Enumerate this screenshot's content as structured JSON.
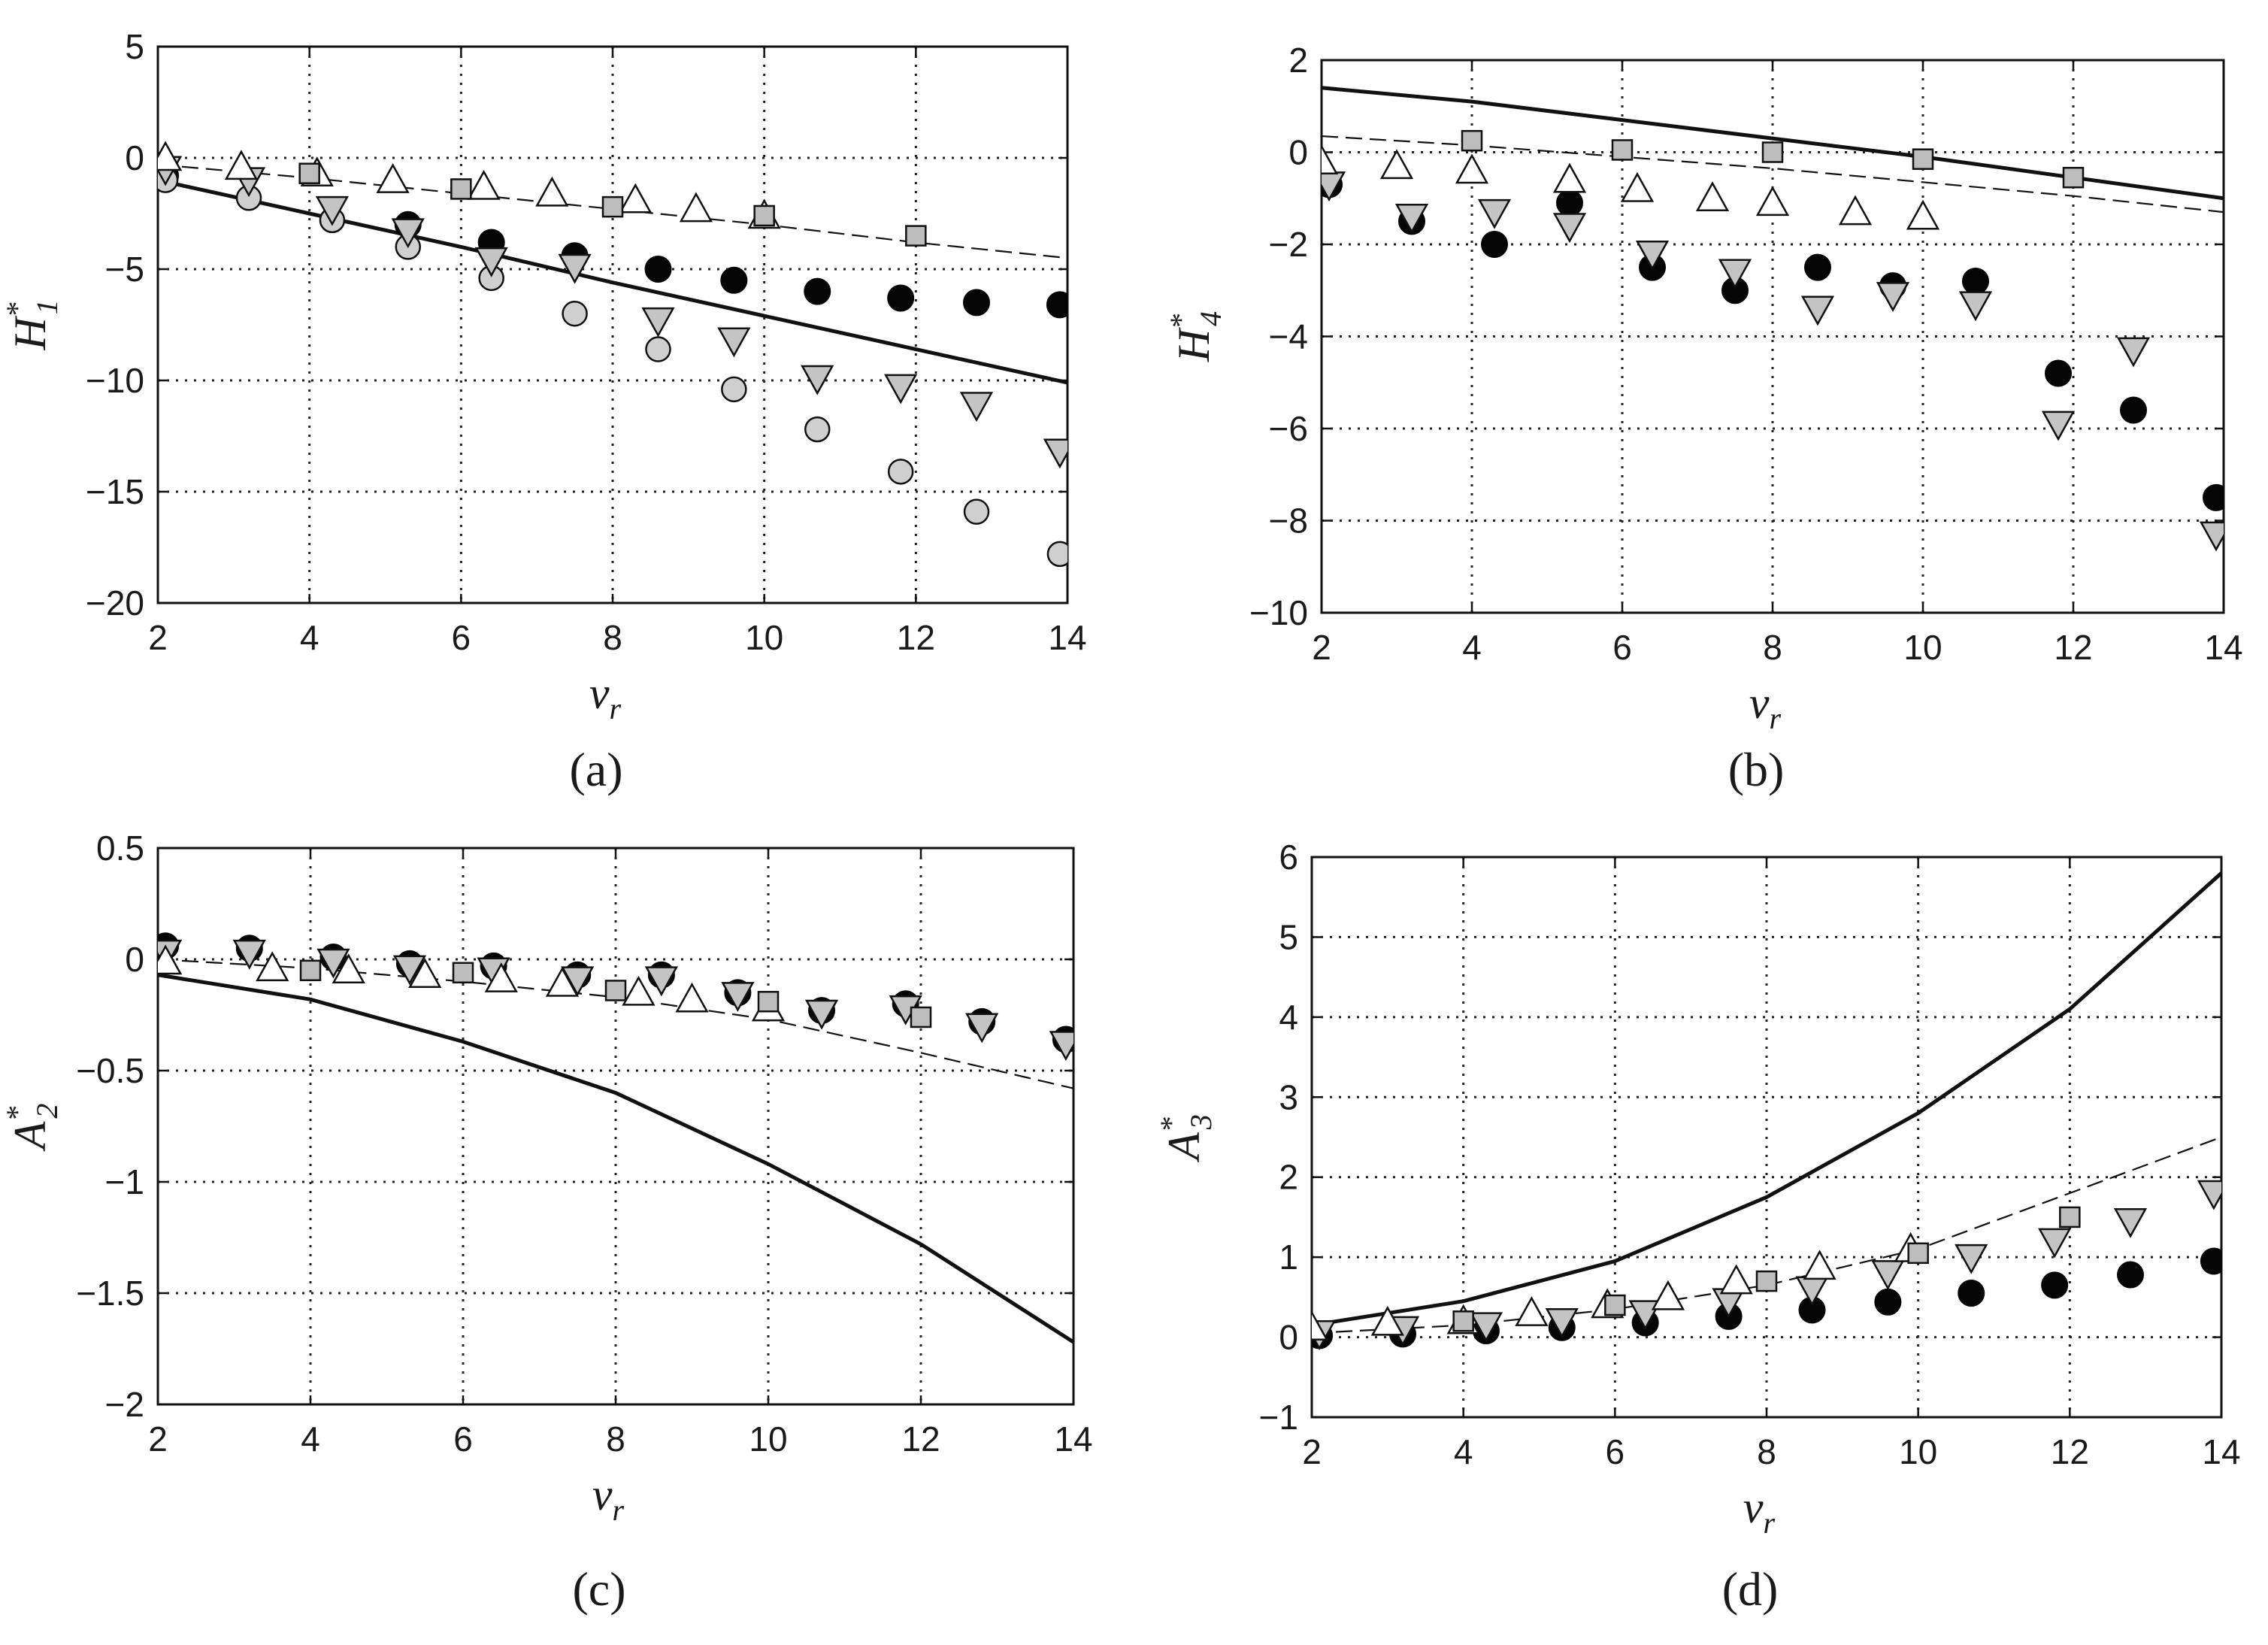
{
  "chart_data": [
    {
      "panel": "a",
      "panel_label": "(a)",
      "type": "scatter",
      "ylabel": "H",
      "ylabel_sup": "*",
      "ylabel_sub": "1",
      "xlabel": "v",
      "xlabel_sub": "r",
      "xlim": [
        2,
        14
      ],
      "ylim": [
        -20,
        5
      ],
      "xticks": [
        2,
        4,
        6,
        8,
        10,
        12,
        14
      ],
      "yticks": [
        5,
        0,
        -5,
        -10,
        -15,
        -20
      ],
      "xticklabels": [
        "2",
        "4",
        "6",
        "8",
        "10",
        "12",
        "14"
      ],
      "yticklabels": [
        "5",
        "0",
        "−5",
        "−10",
        "−15",
        "−20"
      ],
      "grid": true,
      "series": [
        {
          "name": "solid-line",
          "style": "line-solid",
          "x": [
            2,
            4,
            6,
            8,
            10,
            12,
            14
          ],
          "y": [
            -1.0,
            -2.5,
            -4.0,
            -5.6,
            -7.1,
            -8.6,
            -10.1
          ]
        },
        {
          "name": "dashed-line",
          "style": "line-dashed",
          "x": [
            2,
            4,
            6,
            8,
            10,
            12,
            14
          ],
          "y": [
            -0.3,
            -0.9,
            -1.6,
            -2.3,
            -3.0,
            -3.8,
            -4.5
          ]
        },
        {
          "name": "black-circles",
          "style": "circle-black",
          "x": [
            2.1,
            5.3,
            6.4,
            7.5,
            8.6,
            9.6,
            10.7,
            11.8,
            12.8,
            13.9
          ],
          "y": [
            -0.8,
            -3.0,
            -3.8,
            -4.4,
            -5.0,
            -5.5,
            -6.0,
            -6.3,
            -6.5,
            -6.6
          ]
        },
        {
          "name": "gray-circles",
          "style": "circle-gray",
          "x": [
            2.1,
            3.2,
            4.3,
            5.3,
            6.4,
            7.5,
            8.6,
            9.6,
            10.7,
            11.8,
            12.8,
            13.9
          ],
          "y": [
            -1.0,
            -1.8,
            -2.8,
            -4.0,
            -5.4,
            -7.0,
            -8.6,
            -10.4,
            -12.2,
            -14.1,
            -15.9,
            -17.8
          ]
        },
        {
          "name": "gray-down-triangles",
          "style": "tri-down-gray",
          "x": [
            2.1,
            3.2,
            4.3,
            5.3,
            6.4,
            7.5,
            8.6,
            9.6,
            10.7,
            11.8,
            12.8,
            13.9
          ],
          "y": [
            -0.5,
            -1.0,
            -2.3,
            -3.3,
            -4.6,
            -4.9,
            -7.3,
            -8.2,
            -9.9,
            -10.3,
            -11.1,
            -13.2
          ]
        },
        {
          "name": "white-up-triangles",
          "style": "tri-up-white",
          "x": [
            2.1,
            3.1,
            4.1,
            5.1,
            6.3,
            7.2,
            8.3,
            9.1,
            10.0
          ],
          "y": [
            0.0,
            -0.4,
            -0.7,
            -1.0,
            -1.3,
            -1.6,
            -1.9,
            -2.3,
            -2.6
          ]
        },
        {
          "name": "gray-squares",
          "style": "square-gray",
          "x": [
            4.0,
            6.0,
            8.0,
            10.0,
            12.0
          ],
          "y": [
            -0.7,
            -1.4,
            -2.2,
            -2.6,
            -3.5
          ]
        }
      ]
    },
    {
      "panel": "b",
      "panel_label": "(b)",
      "type": "scatter",
      "ylabel": "H",
      "ylabel_sup": "*",
      "ylabel_sub": "4",
      "xlabel": "v",
      "xlabel_sub": "r",
      "xlim": [
        2,
        14
      ],
      "ylim": [
        -10,
        2
      ],
      "xticks": [
        2,
        4,
        6,
        8,
        10,
        12,
        14
      ],
      "yticks": [
        2,
        0,
        -2,
        -4,
        -6,
        -8,
        -10
      ],
      "xticklabels": [
        "2",
        "4",
        "6",
        "8",
        "10",
        "12",
        "14"
      ],
      "yticklabels": [
        "2",
        "0",
        "−2",
        "−4",
        "−6",
        "−8",
        "−10"
      ],
      "grid": true,
      "series": [
        {
          "name": "solid-line",
          "style": "line-solid",
          "x": [
            2,
            4,
            6,
            8,
            10,
            12,
            14
          ],
          "y": [
            1.4,
            1.1,
            0.7,
            0.3,
            -0.1,
            -0.55,
            -1.0
          ]
        },
        {
          "name": "dashed-line",
          "style": "line-dashed",
          "x": [
            2,
            4,
            6,
            8,
            10,
            12,
            14
          ],
          "y": [
            0.35,
            0.15,
            -0.1,
            -0.35,
            -0.65,
            -0.95,
            -1.3
          ]
        },
        {
          "name": "black-circles",
          "style": "circle-black",
          "x": [
            2.1,
            3.2,
            4.3,
            5.3,
            6.4,
            7.5,
            8.6,
            9.6,
            10.7,
            11.8,
            12.8,
            13.9
          ],
          "y": [
            -0.7,
            -1.5,
            -2.0,
            -1.1,
            -2.5,
            -3.0,
            -2.5,
            -2.9,
            -2.8,
            -4.8,
            -5.6,
            -7.5
          ]
        },
        {
          "name": "gray-down-triangles",
          "style": "tri-down-gray",
          "x": [
            2.1,
            3.2,
            4.3,
            5.3,
            6.4,
            7.5,
            8.6,
            9.6,
            10.7,
            11.8,
            12.8,
            13.9
          ],
          "y": [
            -0.7,
            -1.4,
            -1.3,
            -1.6,
            -2.2,
            -2.6,
            -3.4,
            -3.1,
            -3.3,
            -5.9,
            -4.3,
            -8.3
          ]
        },
        {
          "name": "white-up-triangles",
          "style": "tri-up-white",
          "x": [
            2.0,
            3.0,
            4.0,
            5.3,
            6.2,
            7.2,
            8.0,
            9.1,
            10.0
          ],
          "y": [
            -0.2,
            -0.3,
            -0.4,
            -0.6,
            -0.8,
            -1.0,
            -1.1,
            -1.3,
            -1.4
          ]
        },
        {
          "name": "gray-squares",
          "style": "square-gray",
          "x": [
            4.0,
            6.0,
            8.0,
            10.0,
            12.0
          ],
          "y": [
            0.25,
            0.05,
            0.0,
            -0.15,
            -0.55
          ]
        }
      ]
    },
    {
      "panel": "c",
      "panel_label": "(c)",
      "type": "scatter",
      "ylabel": "A",
      "ylabel_sup": "*",
      "ylabel_sub": "2",
      "xlabel": "v",
      "xlabel_sub": "r",
      "xlim": [
        2,
        14
      ],
      "ylim": [
        -2,
        0.5
      ],
      "xticks": [
        2,
        4,
        6,
        8,
        10,
        12,
        14
      ],
      "yticks": [
        0.5,
        0,
        -0.5,
        -1,
        -1.5,
        -2
      ],
      "xticklabels": [
        "2",
        "4",
        "6",
        "8",
        "10",
        "12",
        "14"
      ],
      "yticklabels": [
        "0.5",
        "0",
        "−0.5",
        "−1",
        "−1.5",
        "−2"
      ],
      "grid": true,
      "series": [
        {
          "name": "solid-line",
          "style": "line-solid",
          "x": [
            2,
            4,
            6,
            8,
            10,
            12,
            14
          ],
          "y": [
            -0.07,
            -0.18,
            -0.37,
            -0.6,
            -0.92,
            -1.28,
            -1.72
          ]
        },
        {
          "name": "dashed-line",
          "style": "line-dashed",
          "x": [
            2,
            4,
            6,
            8,
            10,
            12,
            14
          ],
          "y": [
            0.0,
            -0.04,
            -0.1,
            -0.17,
            -0.27,
            -0.42,
            -0.58
          ]
        },
        {
          "name": "black-circles",
          "style": "circle-black",
          "x": [
            2.1,
            3.2,
            4.3,
            5.3,
            6.4,
            7.5,
            8.6,
            9.6,
            10.7,
            11.8,
            12.8,
            13.9
          ],
          "y": [
            0.06,
            0.05,
            0.01,
            -0.02,
            -0.03,
            -0.07,
            -0.07,
            -0.15,
            -0.23,
            -0.2,
            -0.28,
            -0.36
          ]
        },
        {
          "name": "gray-down-triangles",
          "style": "tri-down-gray",
          "x": [
            2.1,
            3.2,
            4.3,
            5.3,
            6.4,
            7.5,
            8.6,
            9.6,
            10.7,
            11.8,
            12.8,
            13.9
          ],
          "y": [
            0.03,
            0.03,
            -0.01,
            -0.04,
            -0.05,
            -0.09,
            -0.09,
            -0.16,
            -0.24,
            -0.22,
            -0.3,
            -0.38
          ]
        },
        {
          "name": "white-up-triangles",
          "style": "tri-up-white",
          "x": [
            2.1,
            3.5,
            4.5,
            5.5,
            6.5,
            7.3,
            8.3,
            9.0,
            10.0
          ],
          "y": [
            -0.01,
            -0.04,
            -0.05,
            -0.07,
            -0.09,
            -0.11,
            -0.15,
            -0.18,
            -0.22
          ]
        },
        {
          "name": "gray-squares",
          "style": "square-gray",
          "x": [
            4.0,
            6.0,
            8.0,
            10.0,
            12.0
          ],
          "y": [
            -0.05,
            -0.06,
            -0.14,
            -0.19,
            -0.26
          ]
        }
      ]
    },
    {
      "panel": "d",
      "panel_label": "(d)",
      "type": "scatter",
      "ylabel": "A",
      "ylabel_sup": "*",
      "ylabel_sub": "3",
      "xlabel": "v",
      "xlabel_sub": "r",
      "xlim": [
        2,
        14
      ],
      "ylim": [
        -1,
        6
      ],
      "xticks": [
        2,
        4,
        6,
        8,
        10,
        12,
        14
      ],
      "yticks": [
        6,
        5,
        4,
        3,
        2,
        1,
        0,
        -1
      ],
      "xticklabels": [
        "2",
        "4",
        "6",
        "8",
        "10",
        "12",
        "14"
      ],
      "yticklabels": [
        "6",
        "5",
        "4",
        "3",
        "2",
        "1",
        "0",
        "−1"
      ],
      "grid": true,
      "series": [
        {
          "name": "solid-line",
          "style": "line-solid",
          "x": [
            2,
            4,
            6,
            8,
            10,
            12,
            14
          ],
          "y": [
            0.15,
            0.45,
            0.95,
            1.75,
            2.8,
            4.1,
            5.8
          ]
        },
        {
          "name": "dashed-line",
          "style": "line-dashed",
          "x": [
            2,
            4,
            6,
            8,
            10,
            12,
            14
          ],
          "y": [
            0.05,
            0.15,
            0.35,
            0.65,
            1.1,
            1.8,
            2.5
          ]
        },
        {
          "name": "black-circles",
          "style": "circle-black",
          "x": [
            2.1,
            3.2,
            4.3,
            5.3,
            6.4,
            7.5,
            8.6,
            9.6,
            10.7,
            11.8,
            12.8,
            13.9
          ],
          "y": [
            0.02,
            0.04,
            0.08,
            0.12,
            0.18,
            0.26,
            0.34,
            0.44,
            0.55,
            0.65,
            0.78,
            0.95
          ]
        },
        {
          "name": "gray-down-triangles",
          "style": "tri-down-gray",
          "x": [
            2.1,
            3.2,
            4.3,
            5.3,
            6.4,
            7.5,
            8.6,
            9.6,
            10.7,
            11.8,
            12.8,
            13.9
          ],
          "y": [
            0.05,
            0.1,
            0.15,
            0.2,
            0.3,
            0.45,
            0.6,
            0.8,
            1.0,
            1.2,
            1.45,
            1.8
          ]
        },
        {
          "name": "white-up-triangles",
          "style": "tri-up-white",
          "x": [
            2.0,
            3.0,
            4.0,
            4.9,
            5.9,
            6.7,
            7.6,
            8.7,
            9.9
          ],
          "y": [
            0.12,
            0.18,
            0.2,
            0.3,
            0.4,
            0.5,
            0.7,
            0.88,
            1.1
          ]
        },
        {
          "name": "gray-squares",
          "style": "square-gray",
          "x": [
            4.0,
            6.0,
            8.0,
            10.0,
            12.0
          ],
          "y": [
            0.2,
            0.4,
            0.7,
            1.05,
            1.5
          ]
        }
      ]
    }
  ]
}
